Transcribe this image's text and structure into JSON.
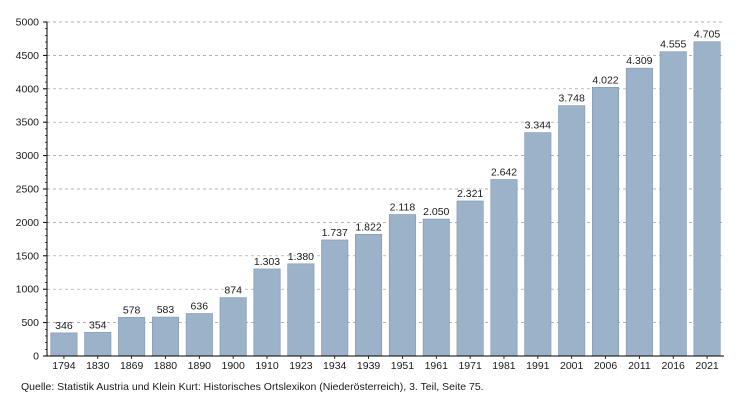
{
  "chart_data": {
    "type": "bar",
    "title": "",
    "xlabel": "",
    "ylabel": "",
    "categories": [
      "1794",
      "1830",
      "1869",
      "1880",
      "1890",
      "1900",
      "1910",
      "1923",
      "1934",
      "1939",
      "1951",
      "1961",
      "1971",
      "1981",
      "1991",
      "2001",
      "2006",
      "2011",
      "2016",
      "2021"
    ],
    "values": [
      346,
      354,
      578,
      583,
      636,
      874,
      1303,
      1380,
      1737,
      1822,
      2118,
      2050,
      2321,
      2642,
      3344,
      3748,
      4022,
      4309,
      4555,
      4705
    ],
    "value_labels": [
      "346",
      "354",
      "578",
      "583",
      "636",
      "874",
      "1.303",
      "1.380",
      "1.737",
      "1.822",
      "2.118",
      "2.050",
      "2.321",
      "2.642",
      "3.344",
      "3.748",
      "4.022",
      "4.309",
      "4.555",
      "4.705"
    ],
    "ylim": [
      0,
      5000
    ],
    "yticks": [
      0,
      500,
      1000,
      1500,
      2000,
      2500,
      3000,
      3500,
      4000,
      4500,
      5000
    ],
    "grid": "horizontal dashed",
    "bar_color": "#9bb2c9",
    "bar_edge_color": "#7d96b0"
  },
  "source": "Quelle: Statistik Austria und Klein Kurt: Historisches Ortslexikon (Niederösterreich), 3. Teil, Seite 75."
}
